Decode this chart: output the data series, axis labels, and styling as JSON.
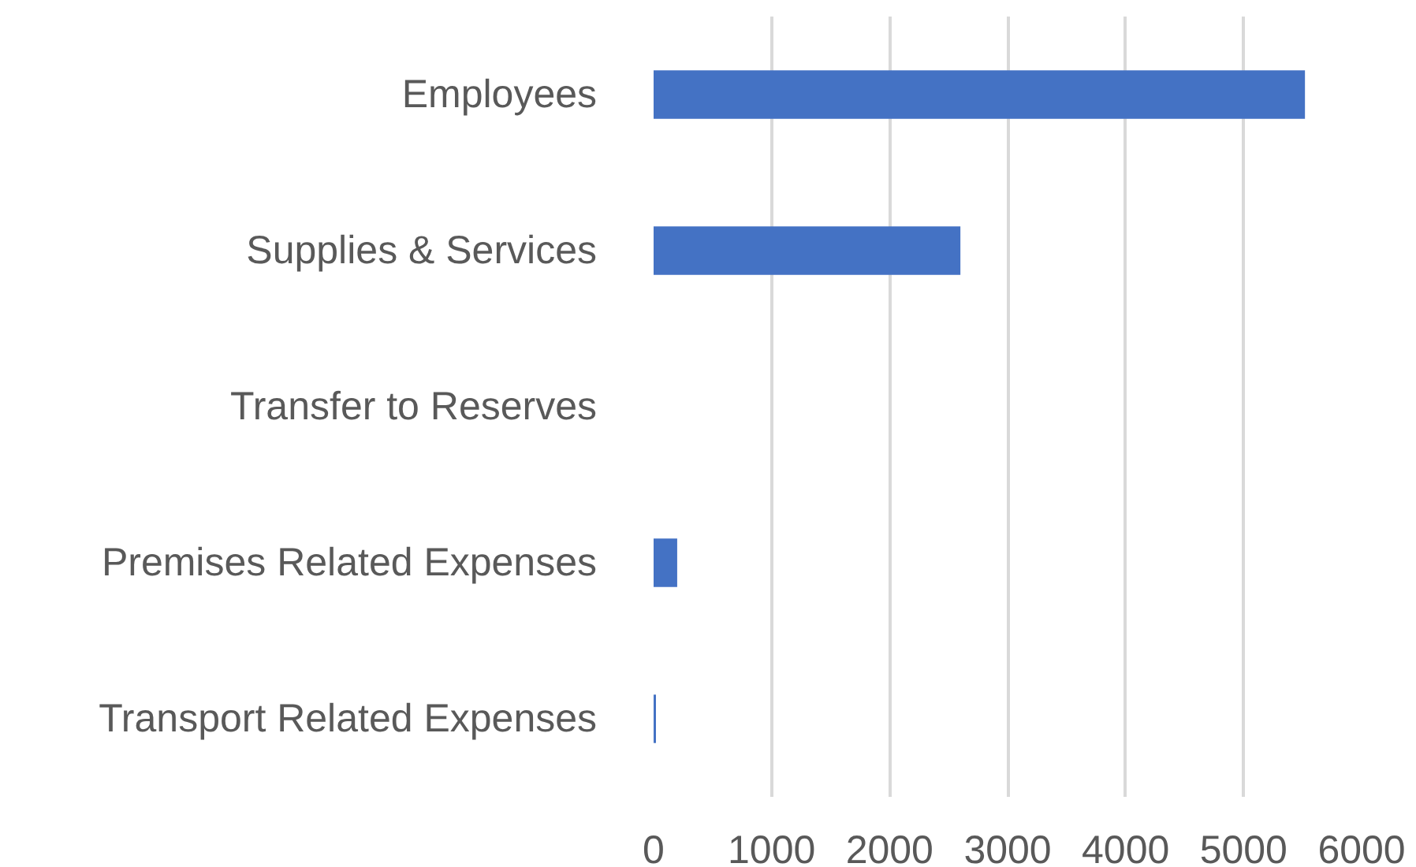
{
  "chart_data": {
    "type": "bar",
    "orientation": "horizontal",
    "categories": [
      "Employees",
      "Supplies & Services",
      "Transfer to Reserves",
      "Premises Related Expenses",
      "Transport Related Expenses"
    ],
    "values": [
      5520,
      2600,
      0,
      200,
      20
    ],
    "color": "#4472c4",
    "xlim": [
      0,
      6000
    ],
    "xticks": [
      0,
      1000,
      2000,
      3000,
      4000,
      5000,
      6000
    ],
    "grid": "x"
  }
}
